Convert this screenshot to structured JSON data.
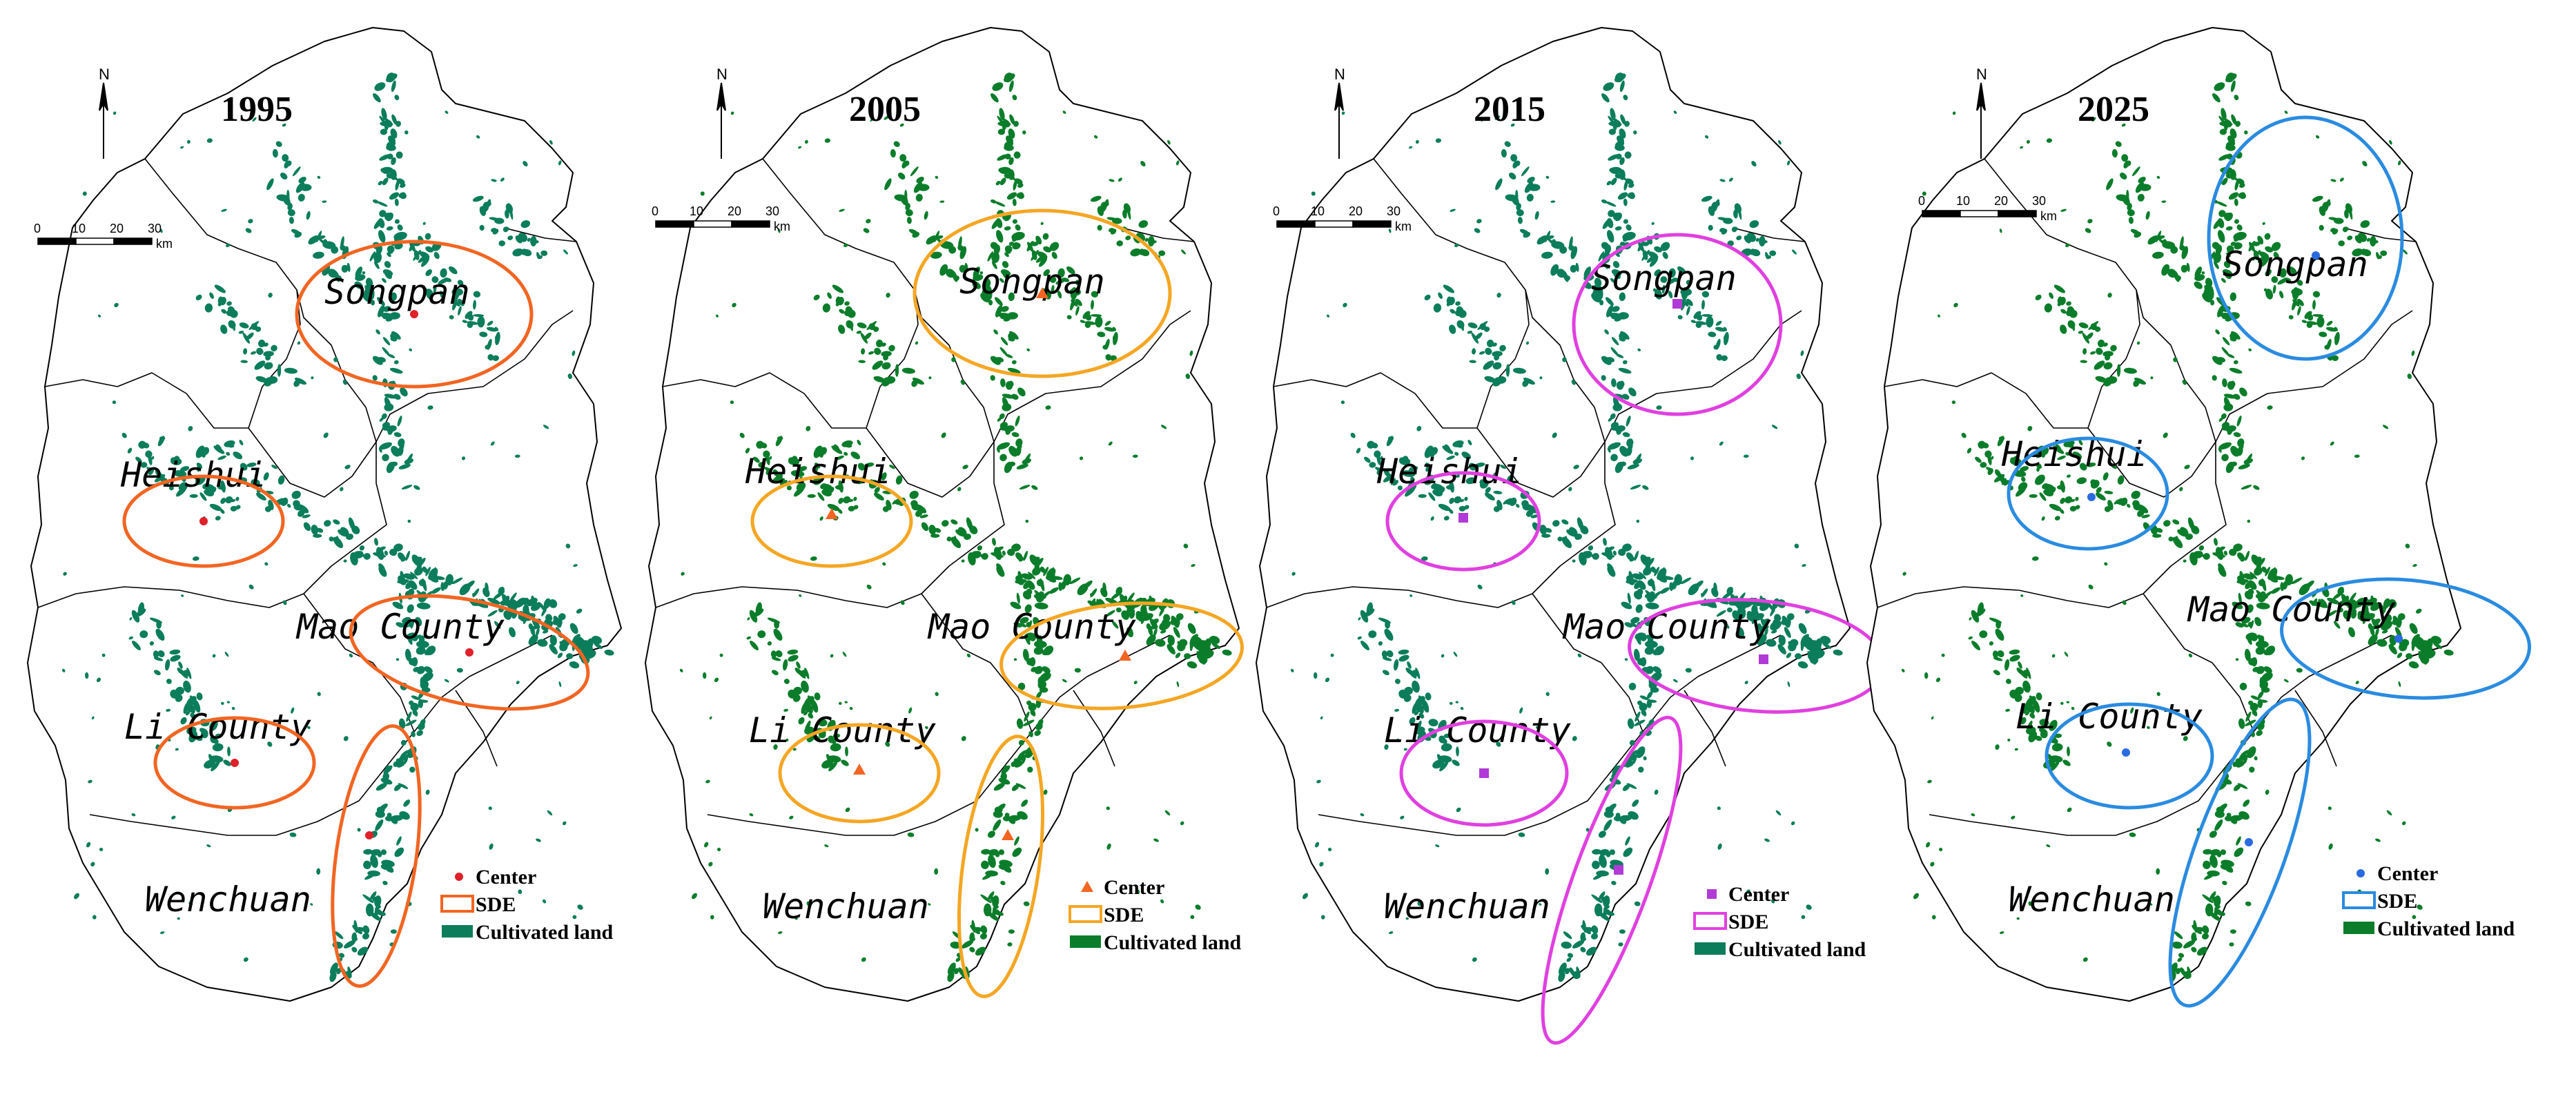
{
  "panels": [
    {
      "year": "1995",
      "color": "#f26522",
      "marker": "circle",
      "center_color": "#e0202a",
      "land_color": "#0b7d5a",
      "counties": [
        "Songpan",
        "Heishui",
        "Mao County",
        "Li County",
        "Wenchuan"
      ],
      "legend": {
        "center": "Center",
        "sde": "SDE",
        "land": "Cultivated land"
      }
    },
    {
      "year": "2005",
      "color": "#f5a623",
      "marker": "triangle",
      "center_color": "#f26522",
      "land_color": "#0b7d2a",
      "counties": [
        "Songpan",
        "Heishui",
        "Mao County",
        "Li County",
        "Wenchuan"
      ],
      "legend": {
        "center": "Center",
        "sde": "SDE",
        "land": "Cultivated land"
      }
    },
    {
      "year": "2015",
      "color": "#e040e0",
      "marker": "square",
      "center_color": "#b13bd6",
      "land_color": "#0b7d5a",
      "counties": [
        "Songpan",
        "Heishui",
        "Mao County",
        "Li County",
        "Wenchuan"
      ],
      "legend": {
        "center": "Center",
        "sde": "SDE",
        "land": "Cultivated land"
      }
    },
    {
      "year": "2025",
      "color": "#2a8be0",
      "marker": "circle",
      "center_color": "#2a6be0",
      "land_color": "#0b7d2a",
      "counties": [
        "Songpan",
        "Heishui",
        "Mao County",
        "Li County",
        "Wenchuan"
      ],
      "legend": {
        "center": "Center",
        "sde": "SDE",
        "land": "Cultivated land"
      }
    }
  ],
  "scale_bar": {
    "ticks": [
      "0",
      "10",
      "20",
      "30"
    ],
    "unit": "km"
  },
  "north_label": "N"
}
